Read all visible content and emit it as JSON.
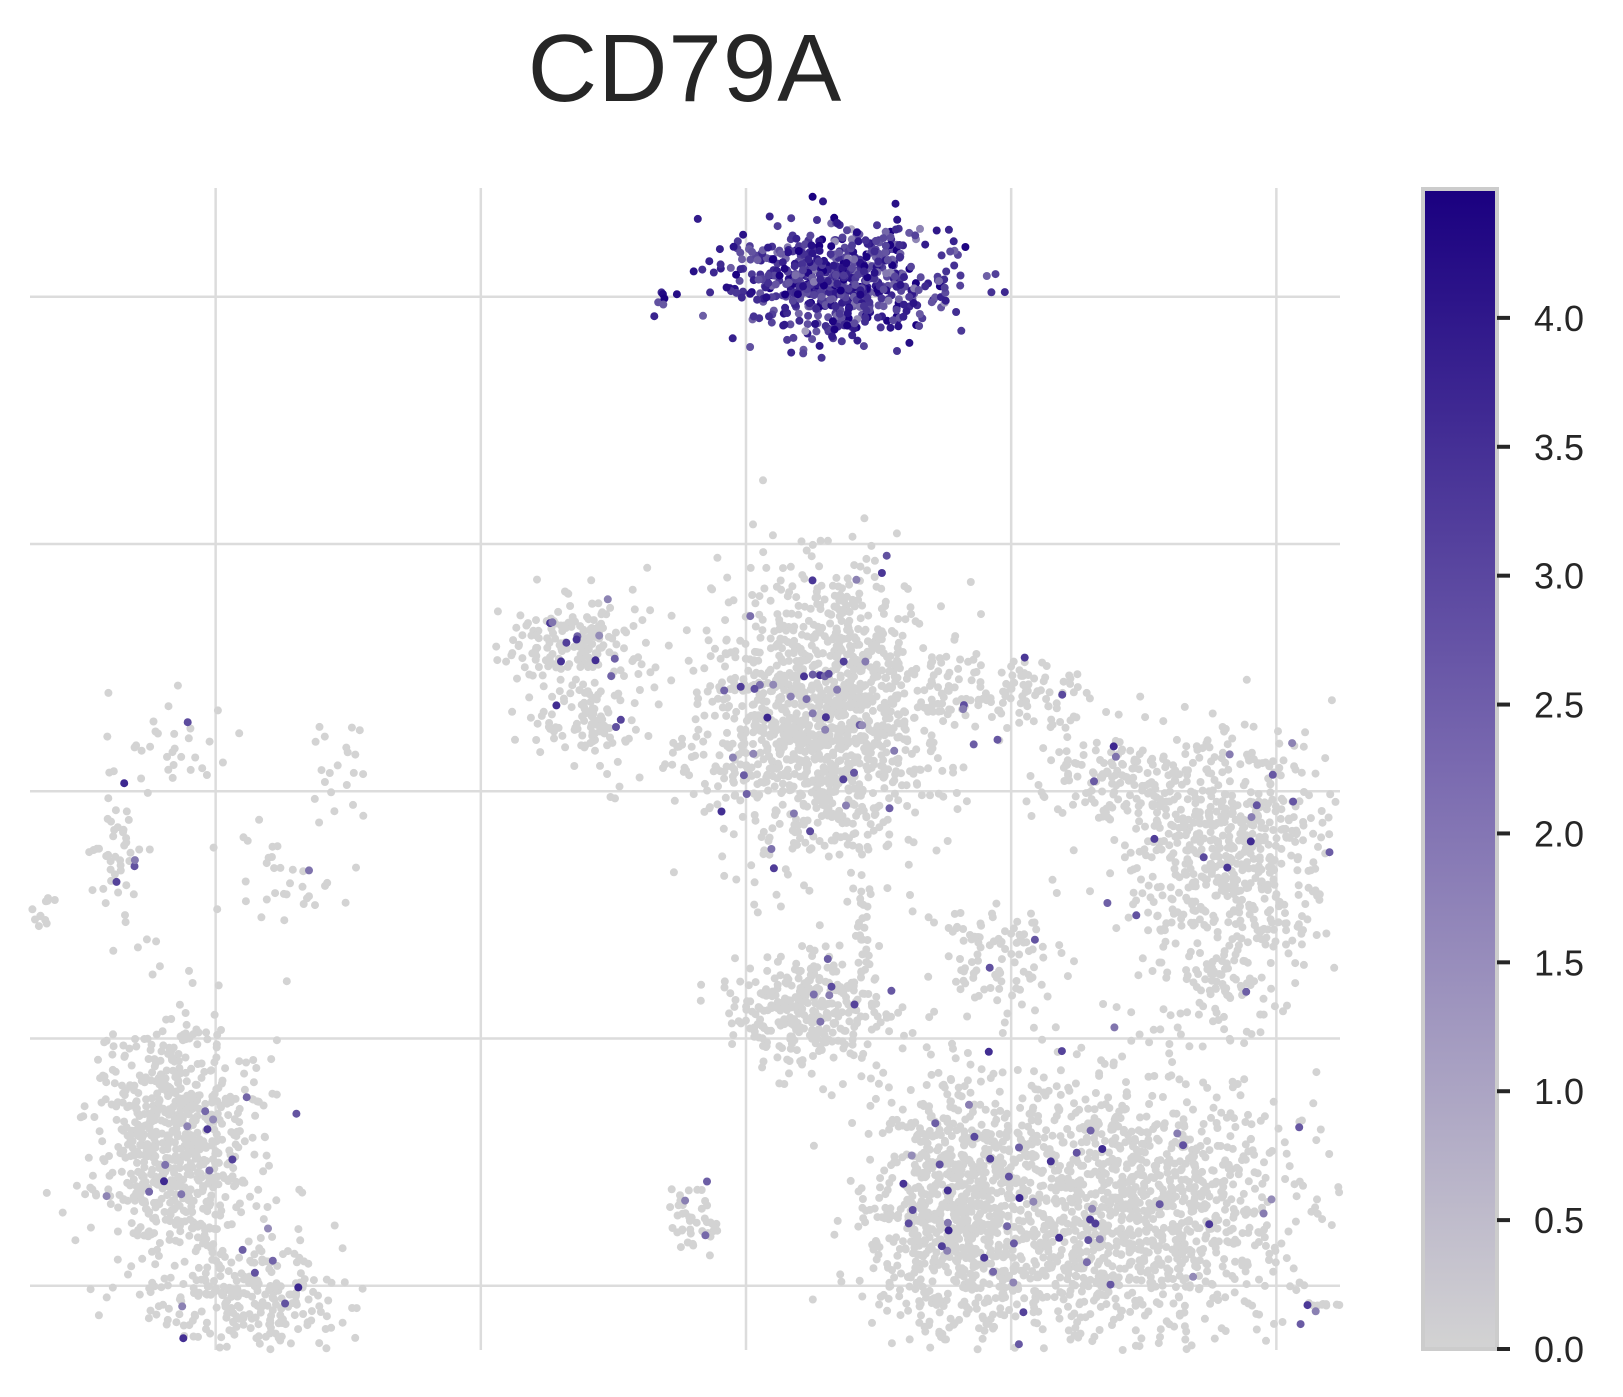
{
  "chart_data": {
    "type": "scatter",
    "title": "CD79A",
    "xlabel": "",
    "ylabel": "",
    "xlim": [
      -8.5,
      16.2
    ],
    "ylim": [
      -6.3,
      17.2
    ],
    "grid": true,
    "point_color_low": "#d3d3d3",
    "point_color_high": "#1a0080",
    "colorbar": {
      "min": 0.0,
      "max": 4.5,
      "ticks": [
        0.0,
        0.5,
        1.0,
        1.5,
        2.0,
        2.5,
        3.0,
        3.5,
        4.0
      ],
      "tick_labels": [
        "0.0",
        "0.5",
        "1.0",
        "1.5",
        "2.0",
        "2.5",
        "3.0",
        "3.5",
        "4.0"
      ]
    },
    "clusters": [
      {
        "x": 6.8,
        "y": 15.3,
        "sx": 1.05,
        "sy": 0.55,
        "n": 650,
        "expr": "high"
      },
      {
        "x": 3.4,
        "y": 15.0,
        "sx": 0.05,
        "sy": 0.05,
        "n": 5,
        "expr": "high"
      },
      {
        "x": 6.5,
        "y": 6.5,
        "sx": 1.05,
        "sy": 1.4,
        "n": 1300,
        "expr": "low"
      },
      {
        "x": 1.8,
        "y": 8.0,
        "sx": 0.65,
        "sy": 0.5,
        "n": 170,
        "expr": "low"
      },
      {
        "x": 2.0,
        "y": 6.6,
        "sx": 0.55,
        "sy": 0.45,
        "n": 110,
        "expr": "low"
      },
      {
        "x": 4.5,
        "y": 5.6,
        "sx": 0.9,
        "sy": 0.35,
        "n": 45,
        "expr": "low"
      },
      {
        "x": 9.8,
        "y": 7.0,
        "sx": 1.0,
        "sy": 0.35,
        "n": 130,
        "expr": "low"
      },
      {
        "x": 11.8,
        "y": 5.3,
        "sx": 0.7,
        "sy": 0.4,
        "n": 110,
        "expr": "low"
      },
      {
        "x": 14.1,
        "y": 3.8,
        "sx": 1.05,
        "sy": 1.25,
        "n": 650,
        "expr": "low"
      },
      {
        "x": 13.9,
        "y": 1.0,
        "sx": 0.6,
        "sy": 0.6,
        "n": 80,
        "expr": "low"
      },
      {
        "x": 6.1,
        "y": 0.6,
        "sx": 0.75,
        "sy": 0.55,
        "n": 320,
        "expr": "low"
      },
      {
        "x": 8.9,
        "y": -3.5,
        "sx": 0.85,
        "sy": 1.4,
        "n": 850,
        "expr": "low"
      },
      {
        "x": 12.2,
        "y": -3.5,
        "sx": 1.6,
        "sy": 1.35,
        "n": 1300,
        "expr": "low"
      },
      {
        "x": 9.6,
        "y": 1.6,
        "sx": 0.75,
        "sy": 0.55,
        "n": 100,
        "expr": "low"
      },
      {
        "x": 7.2,
        "y": 1.9,
        "sx": 0.12,
        "sy": 0.9,
        "n": 40,
        "expr": "low"
      },
      {
        "x": 4.0,
        "y": -3.7,
        "sx": 0.25,
        "sy": 0.35,
        "n": 45,
        "expr": "low"
      },
      {
        "x": 16.0,
        "y": -5.4,
        "sx": 0.25,
        "sy": 0.06,
        "n": 12,
        "expr": "low"
      },
      {
        "x": -5.8,
        "y": -2.3,
        "sx": 0.75,
        "sy": 1.25,
        "n": 750,
        "expr": "low"
      },
      {
        "x": -4.3,
        "y": -5.2,
        "sx": 0.85,
        "sy": 0.6,
        "n": 260,
        "expr": "low"
      },
      {
        "x": -6.0,
        "y": 5.8,
        "sx": 0.8,
        "sy": 0.5,
        "n": 35,
        "expr": "low"
      },
      {
        "x": -6.9,
        "y": 3.8,
        "sx": 0.25,
        "sy": 0.7,
        "n": 45,
        "expr": "low"
      },
      {
        "x": -8.3,
        "y": 2.6,
        "sx": 0.15,
        "sy": 0.2,
        "n": 14,
        "expr": "low"
      },
      {
        "x": -3.8,
        "y": 3.2,
        "sx": 0.55,
        "sy": 0.65,
        "n": 35,
        "expr": "low"
      },
      {
        "x": -2.6,
        "y": 5.6,
        "sx": 0.35,
        "sy": 0.45,
        "n": 18,
        "expr": "low"
      }
    ]
  }
}
